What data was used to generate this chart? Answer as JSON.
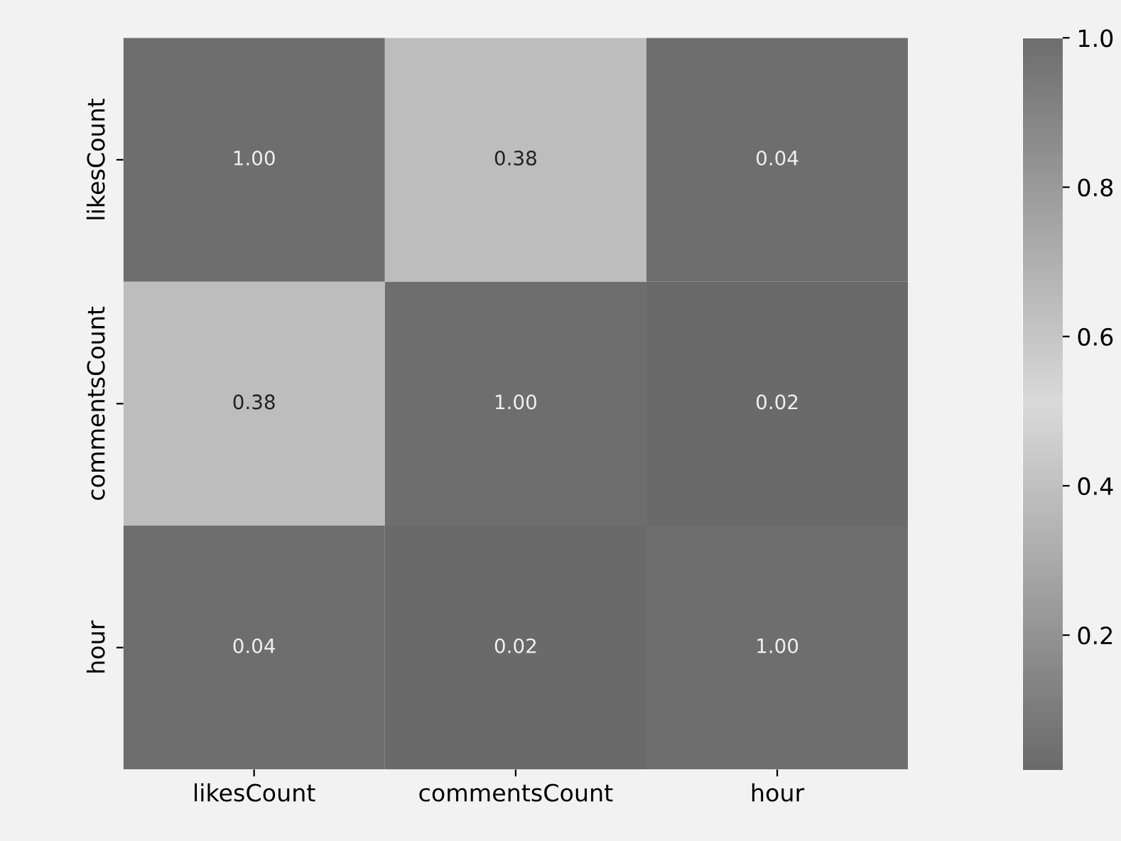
{
  "chart_data": {
    "type": "heatmap",
    "categories": [
      "likesCount",
      "commentsCount",
      "hour"
    ],
    "y_categories": [
      "likesCount",
      "commentsCount",
      "hour"
    ],
    "cells": [
      [
        1.0,
        0.38,
        0.04
      ],
      [
        0.38,
        1.0,
        0.02
      ],
      [
        0.04,
        0.02,
        1.0
      ]
    ],
    "cell_labels": [
      [
        "1.00",
        "0.38",
        "0.04"
      ],
      [
        "0.38",
        "1.00",
        "0.02"
      ],
      [
        "0.04",
        "0.02",
        "1.00"
      ]
    ],
    "clim": [
      0.02,
      1.0
    ],
    "cticks": [
      0.2,
      0.4,
      0.6,
      0.8,
      {
        "value": 1.0,
        "label": "1.0"
      }
    ],
    "grid": false
  }
}
